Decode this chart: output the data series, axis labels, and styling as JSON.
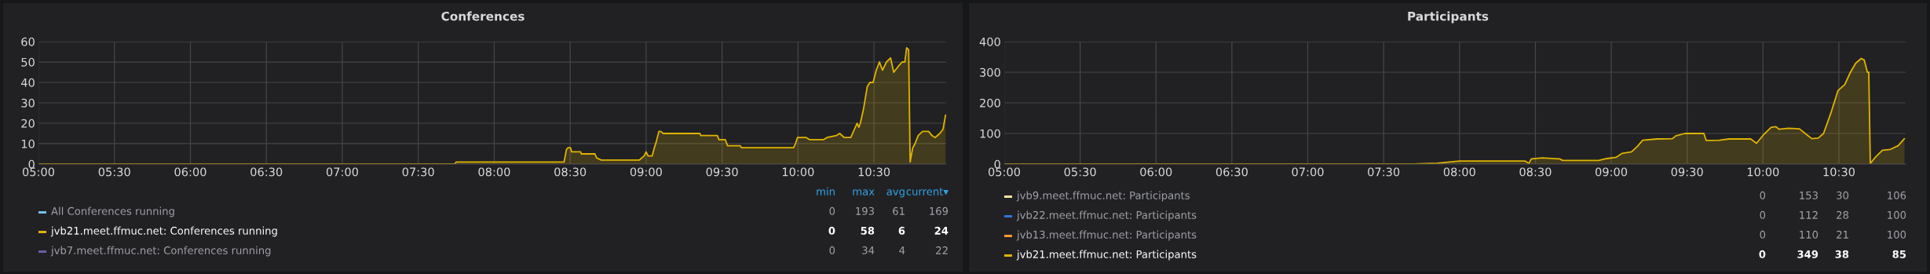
{
  "chart_data": [
    {
      "type": "area",
      "title": "Conferences",
      "legend": "bottom",
      "grid": true,
      "xlim": [
        5,
        10.975
      ],
      "ylim": [
        0,
        60
      ],
      "xticks": [
        {
          "value": 5,
          "label": "05:00"
        },
        {
          "value": 5.5,
          "label": "05:30"
        },
        {
          "value": 6,
          "label": "06:00"
        },
        {
          "value": 6.5,
          "label": "06:30"
        },
        {
          "value": 7,
          "label": "07:00"
        },
        {
          "value": 7.5,
          "label": "07:30"
        },
        {
          "value": 8,
          "label": "08:00"
        },
        {
          "value": 8.5,
          "label": "08:30"
        },
        {
          "value": 9,
          "label": "09:00"
        },
        {
          "value": 9.5,
          "label": "09:30"
        },
        {
          "value": 10,
          "label": "10:00"
        },
        {
          "value": 10.5,
          "label": "10:30"
        }
      ],
      "yticks": [
        0,
        10,
        20,
        30,
        40,
        50,
        60
      ],
      "series": [
        {
          "name": "All Conferences running",
          "color": "#73bff2"
        },
        {
          "name": "jvb21.meet.ffmuc.net: Conferences running",
          "color": "#e0b400",
          "x": [
            5.0,
            7.74,
            7.75,
            8.46,
            8.475,
            8.485,
            8.502,
            8.51,
            8.569,
            8.573,
            8.663,
            8.674,
            8.705,
            8.956,
            8.987,
            9.0,
            9.013,
            9.04,
            9.054,
            9.067,
            9.084,
            9.096,
            9.113,
            9.354,
            9.36,
            9.469,
            9.479,
            9.521,
            9.536,
            9.619,
            9.628,
            9.971,
            9.983,
            9.996,
            10.054,
            10.075,
            10.169,
            10.19,
            10.253,
            10.274,
            10.305,
            10.347,
            10.389,
            10.4,
            10.41,
            10.431,
            10.456,
            10.473,
            10.494,
            10.515,
            10.536,
            10.556,
            10.582,
            10.609,
            10.63,
            10.661,
            10.686,
            10.703,
            10.715,
            10.728,
            10.738,
            10.755,
            10.77,
            10.791,
            10.82,
            10.86,
            10.881,
            10.902,
            10.933,
            10.954,
            10.971
          ],
          "values": [
            0,
            0,
            1,
            1,
            7,
            8,
            8,
            6,
            6,
            5,
            5,
            3,
            2,
            2,
            4,
            6,
            4,
            4,
            8,
            11,
            16,
            16,
            15,
            15,
            14,
            14,
            12,
            12,
            9,
            9,
            8,
            8,
            10,
            13,
            13,
            12,
            12,
            13,
            14,
            15,
            13,
            13,
            20,
            18,
            20,
            27,
            38,
            40,
            40,
            46,
            50,
            46,
            50,
            52,
            45,
            48,
            50,
            50,
            57,
            56,
            1,
            8,
            10,
            14,
            16,
            16,
            14,
            13,
            15,
            17,
            24
          ]
        },
        {
          "name": "jvb7.meet.ffmuc.net: Conferences running",
          "color": "#6e5aa8"
        }
      ],
      "annotations": [
        "min",
        "max",
        "avg",
        "current▾",
        "0",
        "193",
        "61",
        "169",
        "0",
        "58",
        "6",
        "24",
        "0",
        "34",
        "4",
        "22"
      ]
    },
    {
      "type": "area",
      "title": "Participants",
      "legend": "bottom",
      "grid": true,
      "xlim": [
        5,
        10.94
      ],
      "ylim": [
        0,
        400
      ],
      "xticks": [
        {
          "value": 5,
          "label": "05:00"
        },
        {
          "value": 5.5,
          "label": "05:30"
        },
        {
          "value": 6,
          "label": "06:00"
        },
        {
          "value": 6.5,
          "label": "06:30"
        },
        {
          "value": 7,
          "label": "07:00"
        },
        {
          "value": 7.5,
          "label": "07:30"
        },
        {
          "value": 8,
          "label": "08:00"
        },
        {
          "value": 8.5,
          "label": "08:30"
        },
        {
          "value": 9,
          "label": "09:00"
        },
        {
          "value": 9.5,
          "label": "09:30"
        },
        {
          "value": 10,
          "label": "10:00"
        },
        {
          "value": 10.5,
          "label": "10:30"
        }
      ],
      "yticks": [
        0,
        100,
        200,
        300,
        400
      ],
      "series": [
        {
          "name": "jvb9.meet.ffmuc.net: Participants",
          "color": "#fce2a2"
        },
        {
          "name": "jvb22.meet.ffmuc.net: Participants",
          "color": "#3274d9"
        },
        {
          "name": "jvb13.meet.ffmuc.net: Participants",
          "color": "#ff9830"
        },
        {
          "name": "jvb21.meet.ffmuc.net: Participants",
          "color": "#e0b400",
          "x": [
            5.0,
            7.7,
            7.853,
            8.0,
            8.432,
            8.457,
            8.473,
            8.545,
            8.659,
            8.68,
            8.917,
            8.969,
            9.031,
            9.072,
            9.134,
            9.176,
            9.207,
            9.3,
            9.403,
            9.424,
            9.486,
            9.61,
            9.626,
            9.713,
            9.775,
            9.919,
            9.957,
            10.002,
            10.054,
            10.085,
            10.105,
            10.167,
            10.24,
            10.291,
            10.322,
            10.364,
            10.399,
            10.446,
            10.494,
            10.539,
            10.576,
            10.612,
            10.647,
            10.667,
            10.688,
            10.697,
            10.707,
            10.736,
            10.787,
            10.839,
            10.89,
            10.932
          ],
          "values": [
            0,
            0,
            3,
            10,
            10,
            2,
            17,
            20,
            17,
            12,
            12,
            18,
            22,
            35,
            40,
            60,
            78,
            82,
            83,
            92,
            100,
            100,
            77,
            78,
            82,
            82,
            68,
            95,
            120,
            122,
            114,
            117,
            115,
            95,
            83,
            85,
            100,
            165,
            240,
            260,
            300,
            330,
            345,
            340,
            300,
            300,
            2,
            20,
            45,
            48,
            60,
            83
          ]
        }
      ],
      "annotations": [
        "0",
        "153",
        "30",
        "106",
        "0",
        "112",
        "28",
        "100",
        "0",
        "110",
        "21",
        "100",
        "0",
        "349",
        "38",
        "85"
      ]
    }
  ]
}
